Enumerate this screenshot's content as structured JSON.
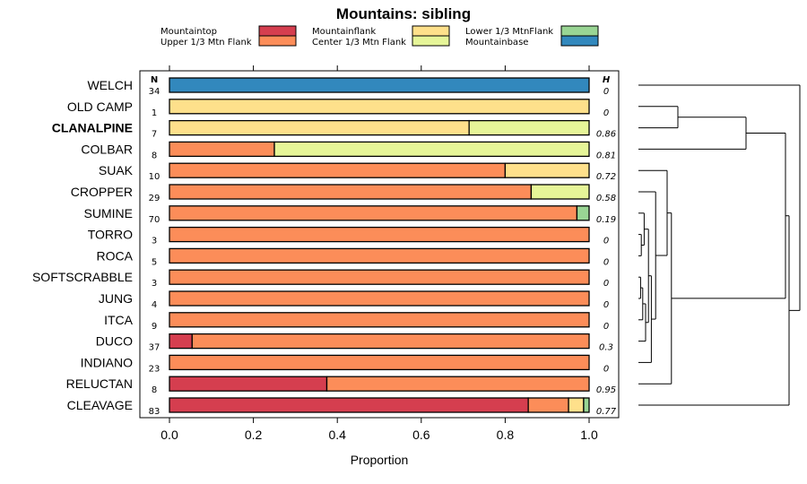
{
  "chart_data": {
    "type": "bar",
    "orientation": "horizontal-stacked",
    "title": "Mountains: sibling",
    "xlabel": "Proportion",
    "xlim": [
      0,
      1
    ],
    "xticks": [
      "0.0",
      "0.2",
      "0.4",
      "0.6",
      "0.8",
      "1.0"
    ],
    "xtick_values": [
      0,
      0.2,
      0.4,
      0.6,
      0.8,
      1.0
    ],
    "n_header": "N",
    "h_header": "H",
    "legend": [
      {
        "label": "Mountaintop",
        "color": "#d53e4f"
      },
      {
        "label": "Upper 1/3 Mtn Flank",
        "color": "#fc8d59"
      },
      {
        "label": "Mountainflank",
        "color": "#fee08b"
      },
      {
        "label": "Center 1/3 Mtn Flank",
        "color": "#e6f598"
      },
      {
        "label": "Lower 1/3 MtnFlank",
        "color": "#99d594"
      },
      {
        "label": "Mountainbase",
        "color": "#3288bd"
      }
    ],
    "rows": [
      {
        "label": "WELCH",
        "bold": false,
        "n": "34",
        "h": "0",
        "values": [
          0,
          0,
          0,
          0,
          0,
          1.0
        ]
      },
      {
        "label": "OLD CAMP",
        "bold": false,
        "n": "1",
        "h": "0",
        "values": [
          0,
          0,
          1.0,
          0,
          0,
          0
        ]
      },
      {
        "label": "CLANALPINE",
        "bold": true,
        "n": "7",
        "h": "0.86",
        "values": [
          0,
          0,
          0.714,
          0.286,
          0,
          0
        ]
      },
      {
        "label": "COLBAR",
        "bold": false,
        "n": "8",
        "h": "0.81",
        "values": [
          0,
          0.25,
          0,
          0.75,
          0,
          0
        ]
      },
      {
        "label": "SUAK",
        "bold": false,
        "n": "10",
        "h": "0.72",
        "values": [
          0,
          0.8,
          0.2,
          0,
          0,
          0
        ]
      },
      {
        "label": "CROPPER",
        "bold": false,
        "n": "29",
        "h": "0.58",
        "values": [
          0,
          0.862,
          0,
          0.138,
          0,
          0
        ]
      },
      {
        "label": "SUMINE",
        "bold": false,
        "n": "70",
        "h": "0.19",
        "values": [
          0,
          0.971,
          0,
          0,
          0.029,
          0
        ]
      },
      {
        "label": "TORRO",
        "bold": false,
        "n": "3",
        "h": "0",
        "values": [
          0,
          1.0,
          0,
          0,
          0,
          0
        ]
      },
      {
        "label": "ROCA",
        "bold": false,
        "n": "5",
        "h": "0",
        "values": [
          0,
          1.0,
          0,
          0,
          0,
          0
        ]
      },
      {
        "label": "SOFTSCRABBLE",
        "bold": false,
        "n": "3",
        "h": "0",
        "values": [
          0,
          1.0,
          0,
          0,
          0,
          0
        ]
      },
      {
        "label": "JUNG",
        "bold": false,
        "n": "4",
        "h": "0",
        "values": [
          0,
          1.0,
          0,
          0,
          0,
          0
        ]
      },
      {
        "label": "ITCA",
        "bold": false,
        "n": "9",
        "h": "0",
        "values": [
          0,
          1.0,
          0,
          0,
          0,
          0
        ]
      },
      {
        "label": "DUCO",
        "bold": false,
        "n": "37",
        "h": "0.3",
        "values": [
          0.054,
          0.946,
          0,
          0,
          0,
          0
        ]
      },
      {
        "label": "INDIANO",
        "bold": false,
        "n": "23",
        "h": "0",
        "values": [
          0,
          1.0,
          0,
          0,
          0,
          0
        ]
      },
      {
        "label": "RELUCTAN",
        "bold": false,
        "n": "8",
        "h": "0.95",
        "values": [
          0.375,
          0.625,
          0,
          0,
          0,
          0
        ]
      },
      {
        "label": "CLEAVAGE",
        "bold": false,
        "n": "83",
        "h": "0.77",
        "values": [
          0.855,
          0.096,
          0.036,
          0,
          0.013,
          0
        ]
      }
    ],
    "dendrogram": {
      "description": "hierarchical clustering tree of rows (leaf order top to bottom = row order)",
      "merges": [
        {
          "left": "SOFTSCRABBLE",
          "right": "JUNG",
          "height": 0.03
        },
        {
          "left": "ITCA",
          "right": "m0",
          "height": 0.06
        },
        {
          "left": "m1",
          "right": "DUCO",
          "height": 0.1
        },
        {
          "left": "TORRO",
          "right": "ROCA",
          "height": 0.04
        },
        {
          "left": "SUMINE",
          "right": "m3",
          "height": 0.08
        },
        {
          "left": "m4",
          "right": "m2",
          "height": 0.14
        },
        {
          "left": "m5",
          "right": "INDIANO",
          "height": 0.18
        },
        {
          "left": "CROPPER",
          "right": "m6",
          "height": 0.24
        },
        {
          "left": "SUAK",
          "right": "m7",
          "height": 0.4
        },
        {
          "left": "m8",
          "right": "RELUCTAN",
          "height": 0.46
        },
        {
          "left": "OLD CAMP",
          "right": "CLANALPINE",
          "height": 0.55
        },
        {
          "left": "m10",
          "right": "COLBAR",
          "height": 1.5
        },
        {
          "left": "m11",
          "right": "m9",
          "height": 2.05
        },
        {
          "left": "m12",
          "right": "CLEAVAGE",
          "height": 2.1
        },
        {
          "left": "WELCH",
          "right": "m13",
          "height": 2.25
        }
      ],
      "max_height": 2.25
    }
  }
}
